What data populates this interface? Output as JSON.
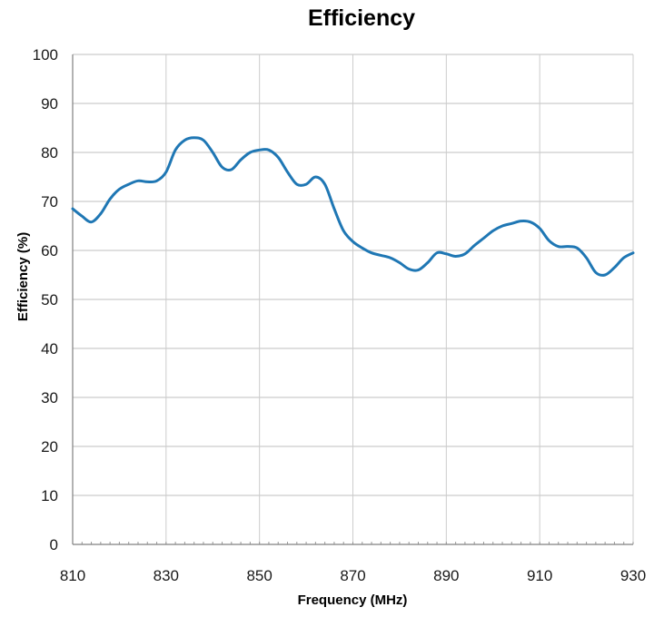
{
  "chart_data": {
    "type": "line",
    "title": "Efficiency",
    "xlabel": "Frequency (MHz)",
    "ylabel": "Efficiency (%)",
    "xlim": [
      810,
      930
    ],
    "ylim": [
      0,
      100
    ],
    "xticks": [
      "810",
      "830",
      "850",
      "870",
      "890",
      "910",
      "930"
    ],
    "yticks": [
      "0",
      "10",
      "20",
      "30",
      "40",
      "50",
      "60",
      "70",
      "80",
      "90",
      "100"
    ],
    "grid": true,
    "legend": "none",
    "colors": {
      "line": "#1f77b4",
      "grid": "#bfbfbf"
    },
    "series": [
      {
        "x": [
          810,
          812,
          814,
          816,
          818,
          820,
          822,
          824,
          826,
          828,
          830,
          832,
          834,
          836,
          838,
          840,
          842,
          844,
          846,
          848,
          850,
          852,
          854,
          856,
          858,
          860,
          862,
          864,
          866,
          868,
          870,
          872,
          874,
          876,
          878,
          880,
          882,
          884,
          886,
          888,
          890,
          892,
          894,
          896,
          898,
          900,
          902,
          904,
          906,
          908,
          910,
          912,
          914,
          916,
          918,
          920,
          922,
          924,
          926,
          928,
          930
        ],
        "values": [
          68.5,
          67,
          65.8,
          67.5,
          70.5,
          72.5,
          73.5,
          74.2,
          74,
          74.2,
          76,
          80.5,
          82.5,
          83,
          82.5,
          80,
          77,
          76.5,
          78.5,
          80,
          80.5,
          80.5,
          79,
          76,
          73.5,
          73.5,
          75,
          73.5,
          68.5,
          64,
          61.8,
          60.5,
          59.5,
          59,
          58.5,
          57.5,
          56.2,
          56,
          57.5,
          59.5,
          59.3,
          58.8,
          59.3,
          61,
          62.5,
          64,
          65,
          65.5,
          66,
          65.8,
          64.5,
          62,
          60.8,
          60.8,
          60.5,
          58.5,
          55.5,
          55,
          56.5,
          58.5,
          59.5
        ]
      }
    ]
  }
}
